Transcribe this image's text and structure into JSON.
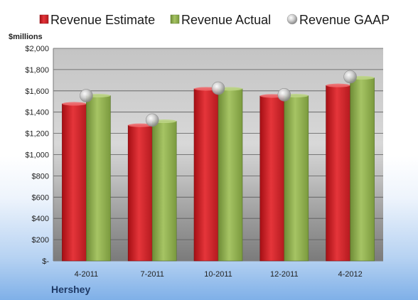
{
  "chart_data": {
    "type": "bar",
    "unit_label": "$millions",
    "company": "Hershey",
    "categories": [
      "4-2011",
      "7-2011",
      "10-2011",
      "12-2011",
      "4-2012"
    ],
    "series": [
      {
        "name": "Revenue Estimate",
        "mark": "bar",
        "color": "#d42a2a",
        "values": [
          1478,
          1276,
          1619,
          1552,
          1651
        ]
      },
      {
        "name": "Revenue Actual",
        "mark": "bar",
        "color": "#8fb04a",
        "values": [
          1555,
          1314,
          1619,
          1555,
          1723
        ]
      },
      {
        "name": "Revenue GAAP",
        "mark": "point",
        "color": "#b8b8b8",
        "values": [
          1555,
          1325,
          1625,
          1563,
          1732
        ]
      }
    ],
    "ylim": [
      0,
      2000
    ],
    "yticks": [
      0,
      200,
      400,
      600,
      800,
      1000,
      1200,
      1400,
      1600,
      1800,
      2000
    ],
    "ytick_labels": [
      "$-",
      "$200",
      "$400",
      "$600",
      "$800",
      "$1,000",
      "$1,200",
      "$1,400",
      "$1,600",
      "$1,800",
      "$2,000"
    ],
    "grid": true,
    "legend_position": "top"
  }
}
